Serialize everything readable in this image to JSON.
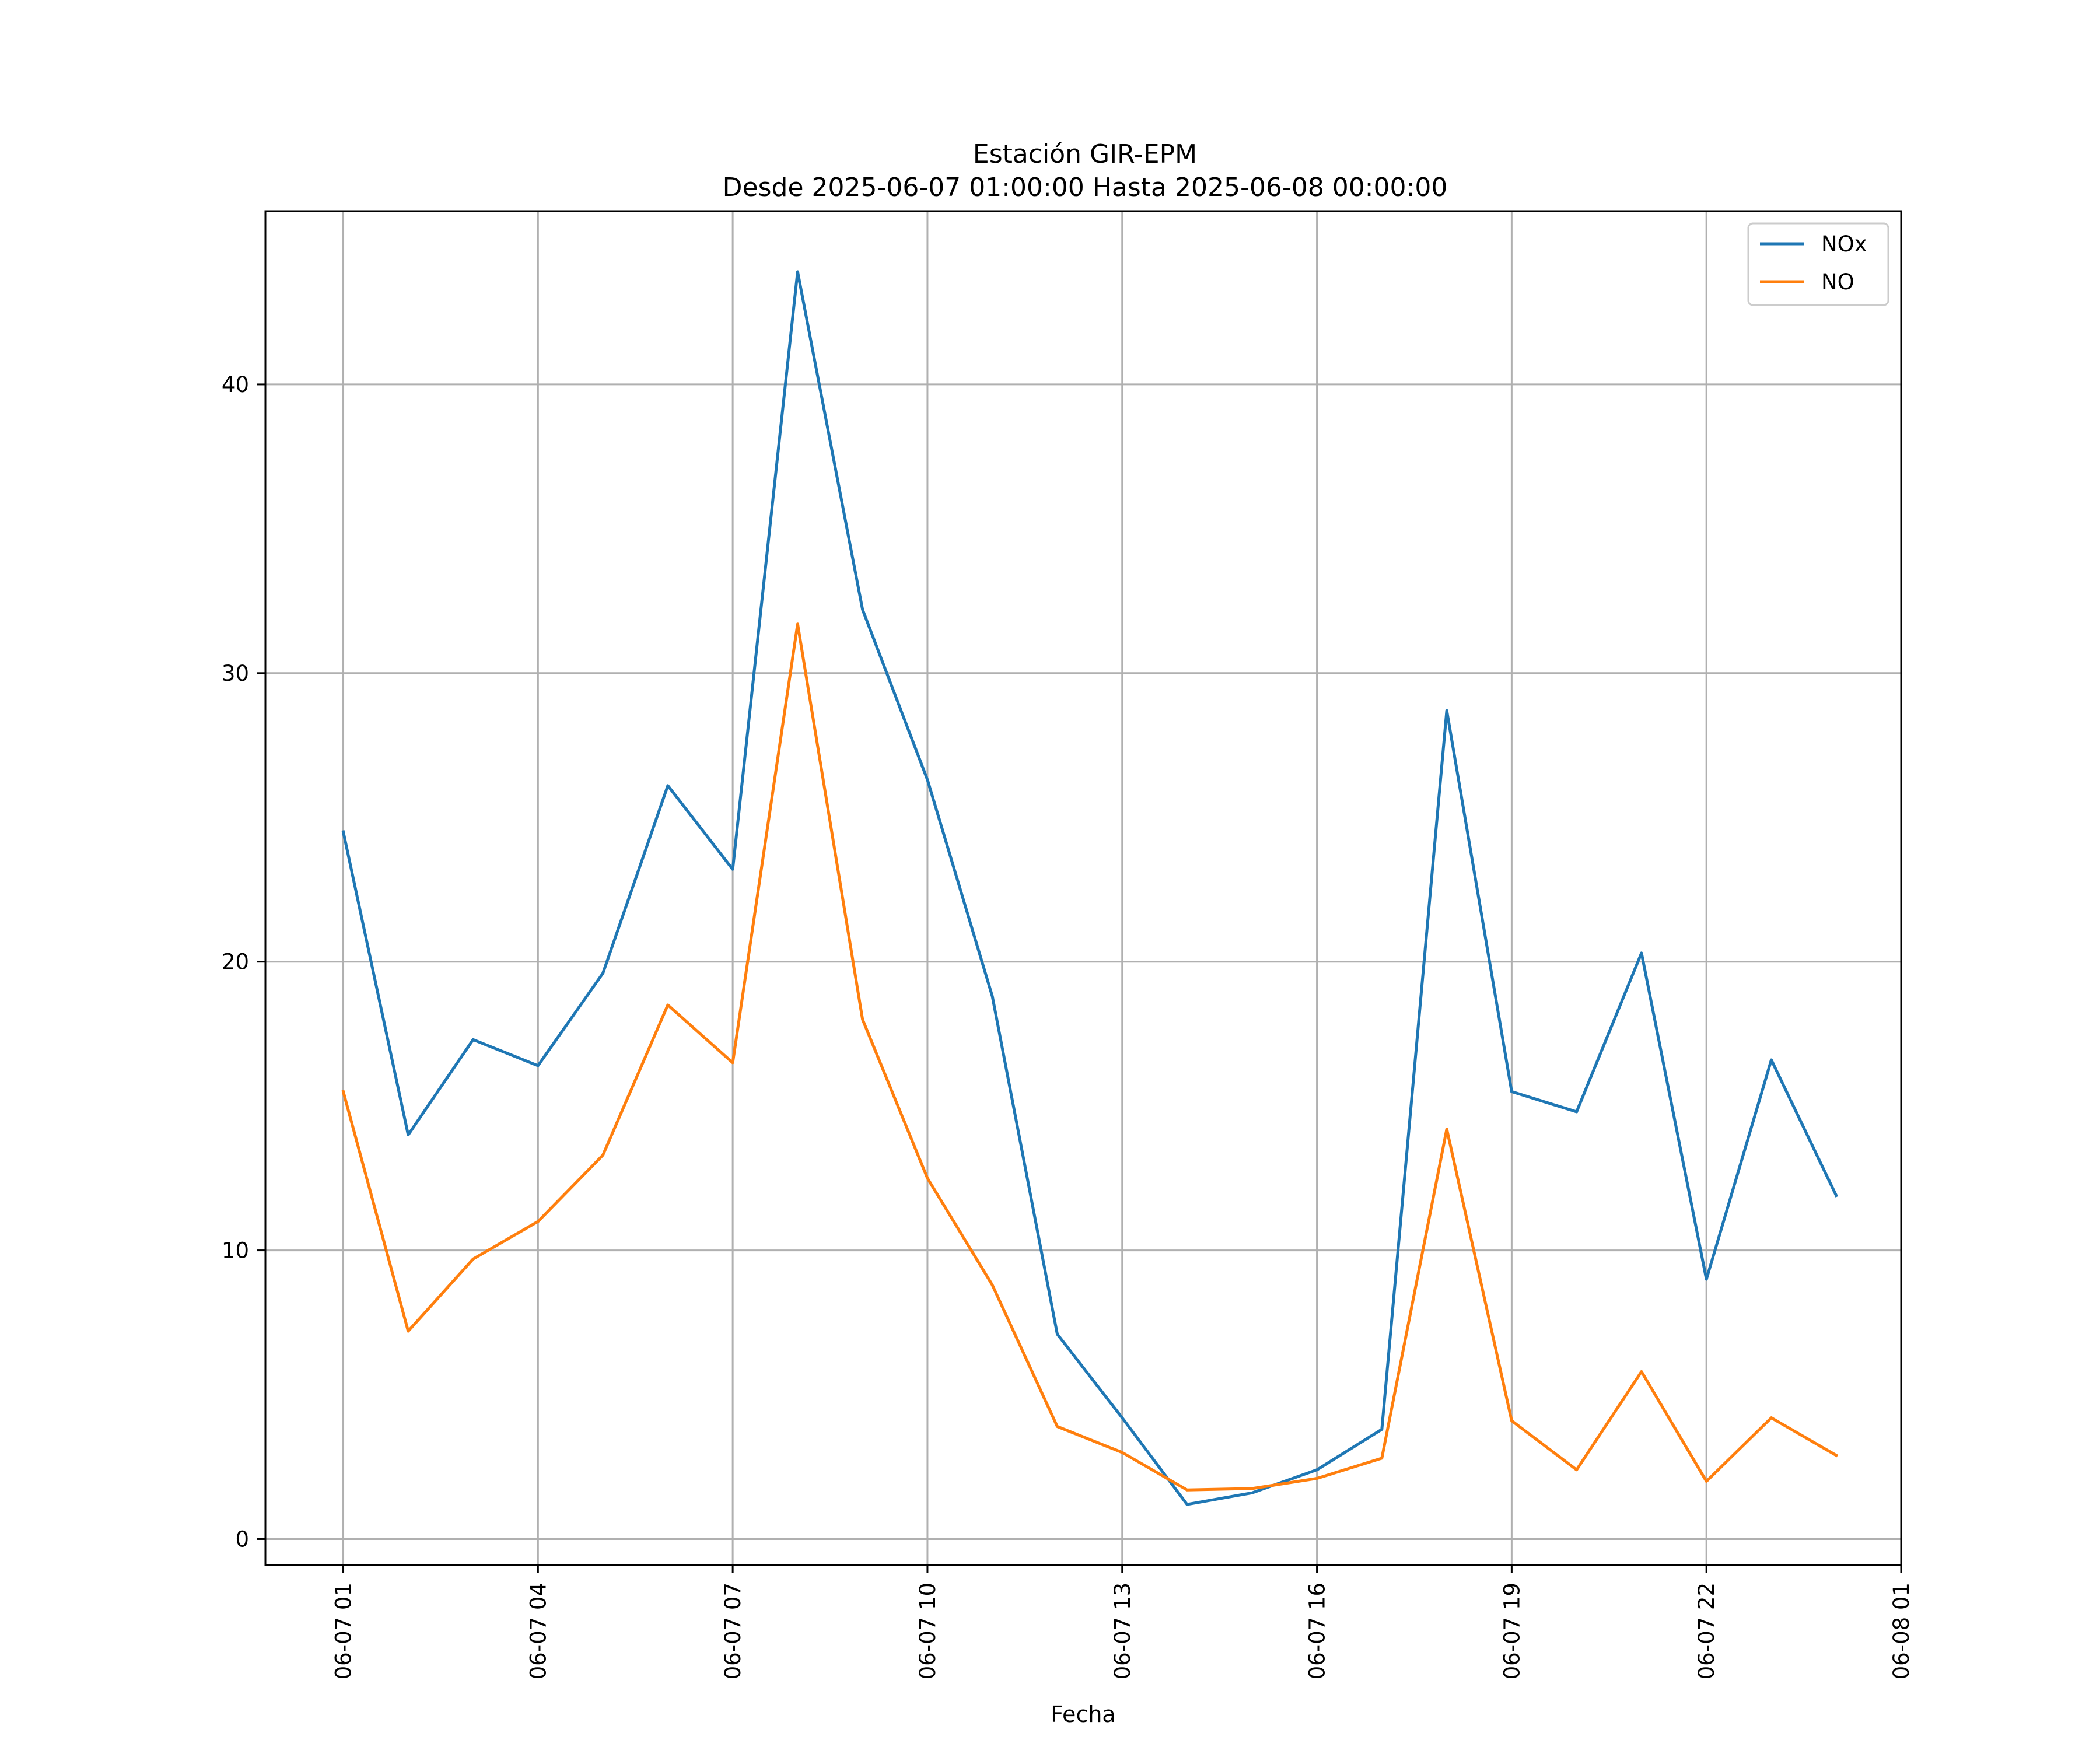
{
  "chart_data": {
    "type": "line",
    "title": "Estación GIR-EPM",
    "subtitle": "Desde 2025-06-07 01:00:00 Hasta 2025-06-08 00:00:00",
    "xlabel": "Fecha",
    "ylabel": "",
    "x": [
      "2025-06-07 01:00",
      "2025-06-07 02:00",
      "2025-06-07 03:00",
      "2025-06-07 04:00",
      "2025-06-07 05:00",
      "2025-06-07 06:00",
      "2025-06-07 07:00",
      "2025-06-07 08:00",
      "2025-06-07 09:00",
      "2025-06-07 10:00",
      "2025-06-07 11:00",
      "2025-06-07 12:00",
      "2025-06-07 13:00",
      "2025-06-07 14:00",
      "2025-06-07 15:00",
      "2025-06-07 16:00",
      "2025-06-07 17:00",
      "2025-06-07 18:00",
      "2025-06-07 19:00",
      "2025-06-07 20:00",
      "2025-06-07 21:00",
      "2025-06-07 22:00",
      "2025-06-07 23:00",
      "2025-06-08 00:00"
    ],
    "series": [
      {
        "name": "NOx",
        "color": "#1f77b4",
        "values": [
          24.5,
          14.0,
          17.3,
          16.4,
          19.6,
          26.1,
          23.2,
          43.9,
          32.2,
          26.3,
          18.8,
          7.1,
          4.2,
          1.2,
          1.6,
          2.4,
          3.8,
          28.7,
          15.5,
          14.8,
          20.3,
          9.0,
          16.6,
          11.9
        ]
      },
      {
        "name": "NO",
        "color": "#ff7f0e",
        "values": [
          15.5,
          7.2,
          9.7,
          11.0,
          13.3,
          18.5,
          16.5,
          31.7,
          18.0,
          12.5,
          8.8,
          3.9,
          3.0,
          1.7,
          1.75,
          2.1,
          2.8,
          14.2,
          4.1,
          2.4,
          5.8,
          2.0,
          4.2,
          2.9
        ]
      }
    ],
    "x_ticks": [
      "06-07 01",
      "06-07 04",
      "06-07 07",
      "06-07 10",
      "06-07 13",
      "06-07 16",
      "06-07 19",
      "06-07 22",
      "06-08 01"
    ],
    "y_ticks": [
      0,
      10,
      20,
      30,
      40
    ],
    "ylim": [
      -0.9,
      46.0
    ],
    "xlim_hours": [
      -1.2,
      24.0
    ],
    "grid": true,
    "legend": "top-right"
  }
}
